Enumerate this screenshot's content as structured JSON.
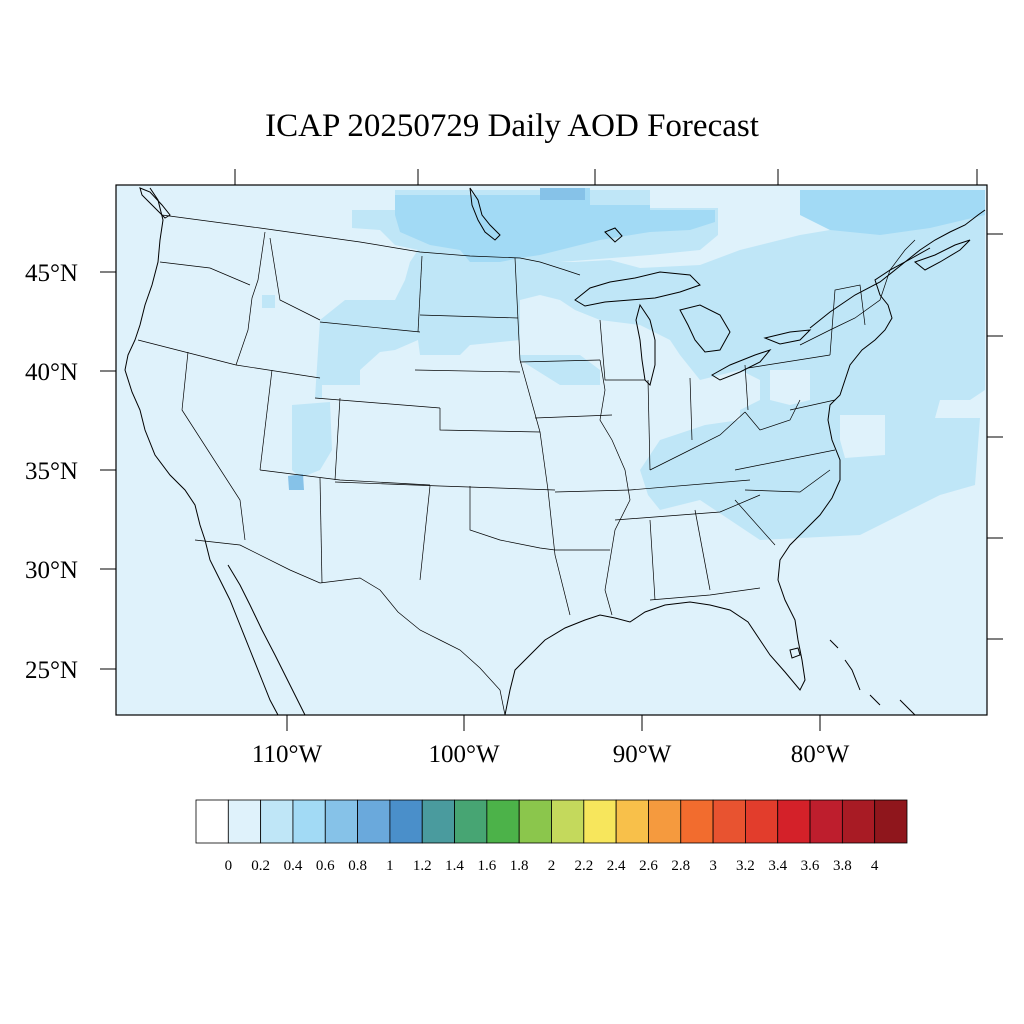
{
  "title": "ICAP 20250729 Daily AOD Forecast",
  "map": {
    "lon_range": [
      -119,
      -70
    ],
    "lat_range": [
      22.5,
      49.2
    ],
    "lat_labels": [
      "45°N",
      "40°N",
      "35°N",
      "30°N",
      "25°N"
    ],
    "lon_labels": [
      "110°W",
      "100°W",
      "90°W",
      "80°W"
    ],
    "background_aod_color": "#dff2fb"
  },
  "colorbar": {
    "labels": [
      "0",
      "0.2",
      "0.4",
      "0.6",
      "0.8",
      "1",
      "1.2",
      "1.4",
      "1.6",
      "1.8",
      "2",
      "2.2",
      "2.4",
      "2.6",
      "2.8",
      "3",
      "3.2",
      "3.4",
      "3.6",
      "3.8",
      "4"
    ],
    "colors": [
      "#ffffff",
      "#dff2fb",
      "#bfe6f7",
      "#a2daf5",
      "#86c2e8",
      "#6aa9dc",
      "#4a8fca",
      "#4a9b9e",
      "#47a573",
      "#4cb249",
      "#8bc64c",
      "#c4d95c",
      "#f7e65c",
      "#f8c04a",
      "#f59a3e",
      "#f26c2e",
      "#e85330",
      "#e23d2c",
      "#d42129",
      "#be1e2d",
      "#a81b24",
      "#8f161c"
    ]
  }
}
